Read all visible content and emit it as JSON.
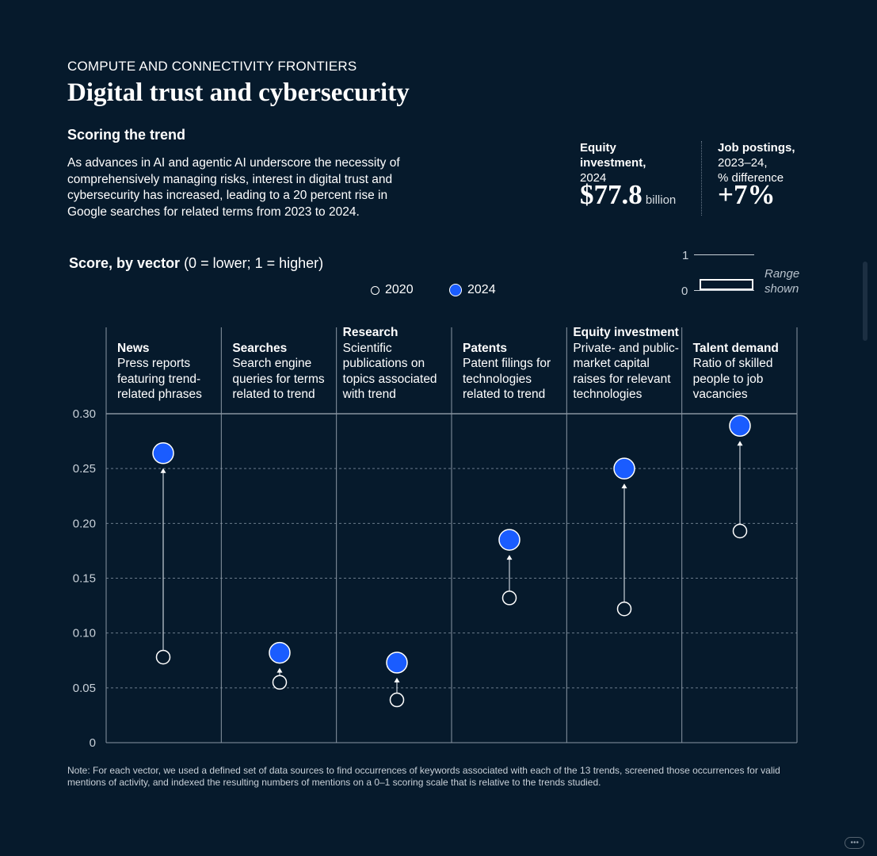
{
  "header": {
    "eyebrow": "COMPUTE AND CONNECTIVITY FRONTIERS",
    "title": "Digital trust and cybersecurity"
  },
  "intro": {
    "subhead": "Scoring the trend",
    "body": "As advances in AI and agentic AI underscore the necessity of comprehensively managing risks, interest in digital trust and cybersecurity has increased, leading to a 20 percent rise in Google searches for related terms from 2023 to 2024."
  },
  "stats": {
    "equity": {
      "label_line1": "Equity",
      "label_line2": "investment,",
      "label_line3": "2024",
      "value": "$77.8",
      "unit": "billion"
    },
    "jobs": {
      "label_line1": "Job postings,",
      "label_line2": "2023–24,",
      "label_line3": "% difference",
      "value": "+7%"
    }
  },
  "chart_header": {
    "title_bold": "Score, by vector",
    "title_rest": " (0 = lower; 1 = higher)"
  },
  "legend": {
    "open_label": "2020",
    "filled_label": "2024"
  },
  "range_key": {
    "top_label": "1",
    "bottom_label": "0",
    "shown_line1": "Range",
    "shown_line2": "shown"
  },
  "note": "Note: For each vector, we used a defined set of data sources to find occurrences of keywords associated with each of the 13 trends, screened those occurrences for valid mentions of activity, and indexed the resulting numbers of mentions on a 0–1 scoring scale that is relative to the trends studied.",
  "colors": {
    "background": "#061a2c",
    "accent_2024": "#1a5cff",
    "grid": "#6a7a8a",
    "text": "#ffffff"
  },
  "chart_data": {
    "type": "scatter",
    "subtype": "dumbbell",
    "title": "Score, by vector (0 = lower; 1 = higher)",
    "ylim": [
      0,
      0.3
    ],
    "yticks": [
      0,
      0.05,
      0.1,
      0.15,
      0.2,
      0.25,
      0.3
    ],
    "ytick_labels": [
      "0",
      "0.05",
      "0.10",
      "0.15",
      "0.20",
      "0.25",
      "0.30"
    ],
    "grid": true,
    "categories": [
      {
        "name": "News",
        "desc": [
          "Press reports",
          "featuring trend-",
          "related phrases"
        ]
      },
      {
        "name": "Searches",
        "desc": [
          "Search engine",
          "queries for terms",
          "related to trend"
        ]
      },
      {
        "name": "Research",
        "desc": [
          "Scientific",
          "publications on",
          "topics associated",
          "with trend"
        ]
      },
      {
        "name": "Patents",
        "desc": [
          "Patent filings for",
          "technologies",
          "related to trend"
        ]
      },
      {
        "name": "Equity investment",
        "desc": [
          "Private- and public-",
          "market capital",
          "raises for relevant",
          "technologies"
        ]
      },
      {
        "name": "Talent demand",
        "desc": [
          "Ratio of skilled",
          "people to job",
          "vacancies"
        ]
      }
    ],
    "series": [
      {
        "name": "2020",
        "values": [
          0.078,
          0.055,
          0.039,
          0.132,
          0.122,
          0.193
        ]
      },
      {
        "name": "2024",
        "values": [
          0.264,
          0.082,
          0.073,
          0.185,
          0.25,
          0.289
        ]
      }
    ]
  }
}
